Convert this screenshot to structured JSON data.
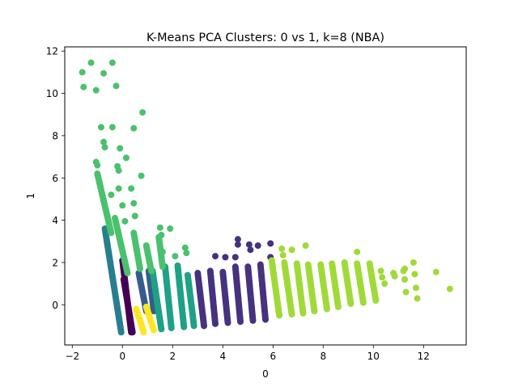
{
  "chart_data": {
    "type": "scatter",
    "title": "K-Means PCA Clusters: 0 vs 1, k=8 (NBA)",
    "xlabel": "0",
    "ylabel": "1",
    "xlim": [
      -2.3,
      13.7
    ],
    "ylim": [
      -1.9,
      12.2
    ],
    "xticks": [
      -2,
      0,
      2,
      4,
      6,
      8,
      10,
      12
    ],
    "yticks": [
      0,
      2,
      4,
      6,
      8,
      10,
      12
    ],
    "grid": false,
    "legend": "none",
    "cluster_colors": [
      "#440154",
      "#46327e",
      "#365c8d",
      "#277f8e",
      "#1fa187",
      "#4ac16d",
      "#a0da39",
      "#fde725"
    ],
    "clusters": [
      {
        "cluster": 0,
        "color": "#440154",
        "strips": [
          {
            "x_start": 0.0,
            "x_end": 0.35,
            "y_top": 2.1,
            "y_bottom": -1.3
          },
          {
            "x_start": 0.05,
            "x_end": 0.4,
            "y_top": 1.2,
            "y_bottom": -1.3
          }
        ]
      },
      {
        "cluster": 1,
        "color": "#46327e",
        "strips": [
          {
            "x_start": 3.0,
            "x_end": 3.25,
            "y_top": 1.5,
            "y_bottom": -1.0
          },
          {
            "x_start": 3.5,
            "x_end": 3.7,
            "y_top": 1.6,
            "y_bottom": -0.9
          },
          {
            "x_start": 4.0,
            "x_end": 4.2,
            "y_top": 1.55,
            "y_bottom": -0.85
          },
          {
            "x_start": 4.5,
            "x_end": 4.7,
            "y_top": 1.8,
            "y_bottom": -0.8
          },
          {
            "x_start": 5.0,
            "x_end": 5.2,
            "y_top": 1.8,
            "y_bottom": -0.75
          },
          {
            "x_start": 5.5,
            "x_end": 5.7,
            "y_top": 1.9,
            "y_bottom": -0.7
          }
        ],
        "points": [
          [
            4.6,
            3.1
          ],
          [
            4.6,
            2.85
          ],
          [
            5.05,
            2.85
          ],
          [
            5.1,
            2.6
          ],
          [
            5.4,
            2.8
          ],
          [
            5.9,
            2.9
          ],
          [
            5.9,
            2.25
          ],
          [
            4.1,
            2.25
          ],
          [
            4.5,
            2.25
          ],
          [
            3.7,
            2.3
          ]
        ]
      },
      {
        "cluster": 2,
        "color": "#365c8d",
        "strips": [
          {
            "x_start": 0.65,
            "x_end": 0.95,
            "y_top": 1.5,
            "y_bottom": -0.3
          },
          {
            "x_start": 1.05,
            "x_end": 1.25,
            "y_top": 1.6,
            "y_bottom": -0.3
          }
        ]
      },
      {
        "cluster": 3,
        "color": "#277f8e",
        "strips": [
          {
            "x_start": -0.7,
            "x_end": -0.05,
            "y_top": 3.6,
            "y_bottom": -1.3
          }
        ]
      },
      {
        "cluster": 4,
        "color": "#1fa187",
        "strips": [
          {
            "x_start": 1.2,
            "x_end": 1.55,
            "y_top": 1.6,
            "y_bottom": -1.15
          },
          {
            "x_start": 1.7,
            "x_end": 1.95,
            "y_top": 1.8,
            "y_bottom": -1.1
          },
          {
            "x_start": 2.2,
            "x_end": 2.45,
            "y_top": 1.85,
            "y_bottom": -1.05
          },
          {
            "x_start": 2.6,
            "x_end": 2.85,
            "y_top": 1.4,
            "y_bottom": -1.0
          }
        ]
      },
      {
        "cluster": 5,
        "color": "#4ac16d",
        "strips": [
          {
            "x_start": -1.0,
            "x_end": -0.45,
            "y_top": 6.2,
            "y_bottom": 3.4
          },
          {
            "x_start": -0.3,
            "x_end": 0.2,
            "y_top": 4.1,
            "y_bottom": 1.5
          },
          {
            "x_start": 0.45,
            "x_end": 0.7,
            "y_top": 3.4,
            "y_bottom": 1.7
          },
          {
            "x_start": 0.95,
            "x_end": 1.15,
            "y_top": 2.8,
            "y_bottom": 1.6
          },
          {
            "x_start": 1.45,
            "x_end": 1.6,
            "y_top": 3.2,
            "y_bottom": 1.8
          }
        ],
        "points": [
          [
            -1.6,
            11.0
          ],
          [
            -1.25,
            11.45
          ],
          [
            -0.75,
            10.95
          ],
          [
            -0.4,
            11.45
          ],
          [
            -1.55,
            10.3
          ],
          [
            -1.05,
            10.15
          ],
          [
            -0.25,
            10.35
          ],
          [
            0.8,
            9.1
          ],
          [
            -0.85,
            8.4
          ],
          [
            -0.4,
            8.4
          ],
          [
            0.45,
            8.35
          ],
          [
            -0.75,
            7.7
          ],
          [
            -0.7,
            7.45
          ],
          [
            -0.1,
            7.4
          ],
          [
            0.15,
            6.95
          ],
          [
            -1.05,
            6.75
          ],
          [
            -1.0,
            6.6
          ],
          [
            -0.2,
            6.55
          ],
          [
            -0.15,
            6.35
          ],
          [
            0.75,
            6.1
          ],
          [
            -0.15,
            5.5
          ],
          [
            0.35,
            5.5
          ],
          [
            -0.45,
            5.2
          ],
          [
            0.45,
            4.8
          ],
          [
            0.0,
            4.7
          ],
          [
            0.5,
            4.2
          ],
          [
            0.1,
            3.95
          ],
          [
            1.5,
            3.65
          ],
          [
            1.9,
            3.6
          ],
          [
            1.55,
            3.3
          ],
          [
            2.5,
            2.7
          ],
          [
            1.6,
            2.5
          ],
          [
            2.1,
            2.3
          ],
          [
            2.55,
            2.45
          ]
        ]
      },
      {
        "cluster": 6,
        "color": "#a0da39",
        "strips": [
          {
            "x_start": 5.95,
            "x_end": 6.25,
            "y_top": 2.1,
            "y_bottom": -0.5
          },
          {
            "x_start": 6.45,
            "x_end": 6.75,
            "y_top": 2.0,
            "y_bottom": -0.45
          },
          {
            "x_start": 6.95,
            "x_end": 7.2,
            "y_top": 1.95,
            "y_bottom": -0.4
          },
          {
            "x_start": 7.4,
            "x_end": 7.65,
            "y_top": 1.9,
            "y_bottom": -0.3
          },
          {
            "x_start": 7.9,
            "x_end": 8.15,
            "y_top": 1.9,
            "y_bottom": -0.2
          },
          {
            "x_start": 8.35,
            "x_end": 8.6,
            "y_top": 1.95,
            "y_bottom": -0.1
          },
          {
            "x_start": 8.85,
            "x_end": 9.1,
            "y_top": 2.0,
            "y_bottom": 0.05
          },
          {
            "x_start": 9.35,
            "x_end": 9.6,
            "y_top": 1.95,
            "y_bottom": 0.1
          },
          {
            "x_start": 9.85,
            "x_end": 10.1,
            "y_top": 1.95,
            "y_bottom": 0.2
          }
        ],
        "points": [
          [
            6.35,
            2.65
          ],
          [
            6.4,
            2.35
          ],
          [
            6.75,
            2.6
          ],
          [
            7.3,
            2.8
          ],
          [
            9.35,
            2.5
          ],
          [
            10.3,
            1.6
          ],
          [
            10.35,
            1.3
          ],
          [
            10.45,
            1.0
          ],
          [
            10.8,
            1.5
          ],
          [
            10.85,
            1.35
          ],
          [
            11.25,
            1.7
          ],
          [
            11.2,
            1.6
          ],
          [
            11.25,
            1.2
          ],
          [
            11.3,
            0.6
          ],
          [
            11.6,
            2.0
          ],
          [
            11.65,
            1.45
          ],
          [
            11.7,
            0.8
          ],
          [
            11.75,
            0.3
          ],
          [
            12.5,
            1.55
          ],
          [
            13.05,
            0.75
          ]
        ]
      },
      {
        "cluster": 7,
        "color": "#fde725",
        "strips": [
          {
            "x_start": 0.55,
            "x_end": 0.85,
            "y_top": -0.2,
            "y_bottom": -1.3
          },
          {
            "x_start": 0.95,
            "x_end": 1.25,
            "y_top": -0.1,
            "y_bottom": -1.2
          }
        ]
      }
    ]
  }
}
